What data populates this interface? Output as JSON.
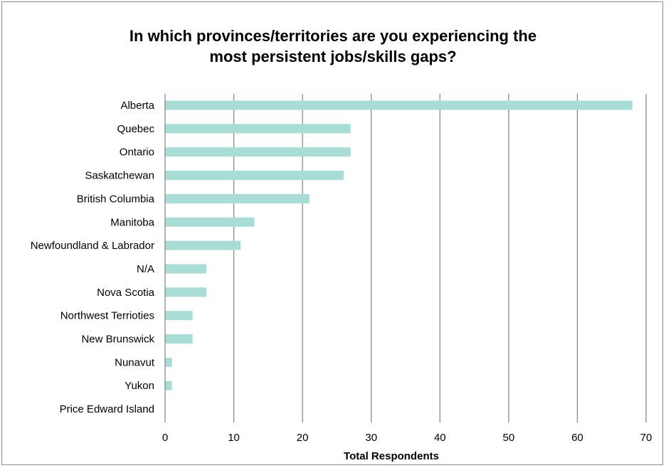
{
  "chart_data": {
    "type": "bar",
    "orientation": "horizontal",
    "title_lines": [
      "In which provinces/territories are you experiencing the",
      "most persistent jobs/skills gaps?"
    ],
    "xlabel": "Total Respondents",
    "ylabel": "",
    "xlim": [
      0,
      70
    ],
    "xticks": [
      0,
      10,
      20,
      30,
      40,
      50,
      60,
      70
    ],
    "grid": "vertical",
    "legend": "none",
    "bar_color": "#a8ddd6",
    "categories": [
      "Alberta",
      "Quebec",
      "Ontario",
      "Saskatchewan",
      "British Columbia",
      "Manitoba",
      "Newfoundland & Labrador",
      "N/A",
      "Nova Scotia",
      "Northwest Terrioties",
      "New Brunswick",
      "Nunavut",
      "Yukon",
      "Price Edward Island"
    ],
    "values": [
      68,
      27,
      27,
      26,
      21,
      13,
      11,
      6,
      6,
      4,
      4,
      1,
      1,
      0
    ]
  }
}
